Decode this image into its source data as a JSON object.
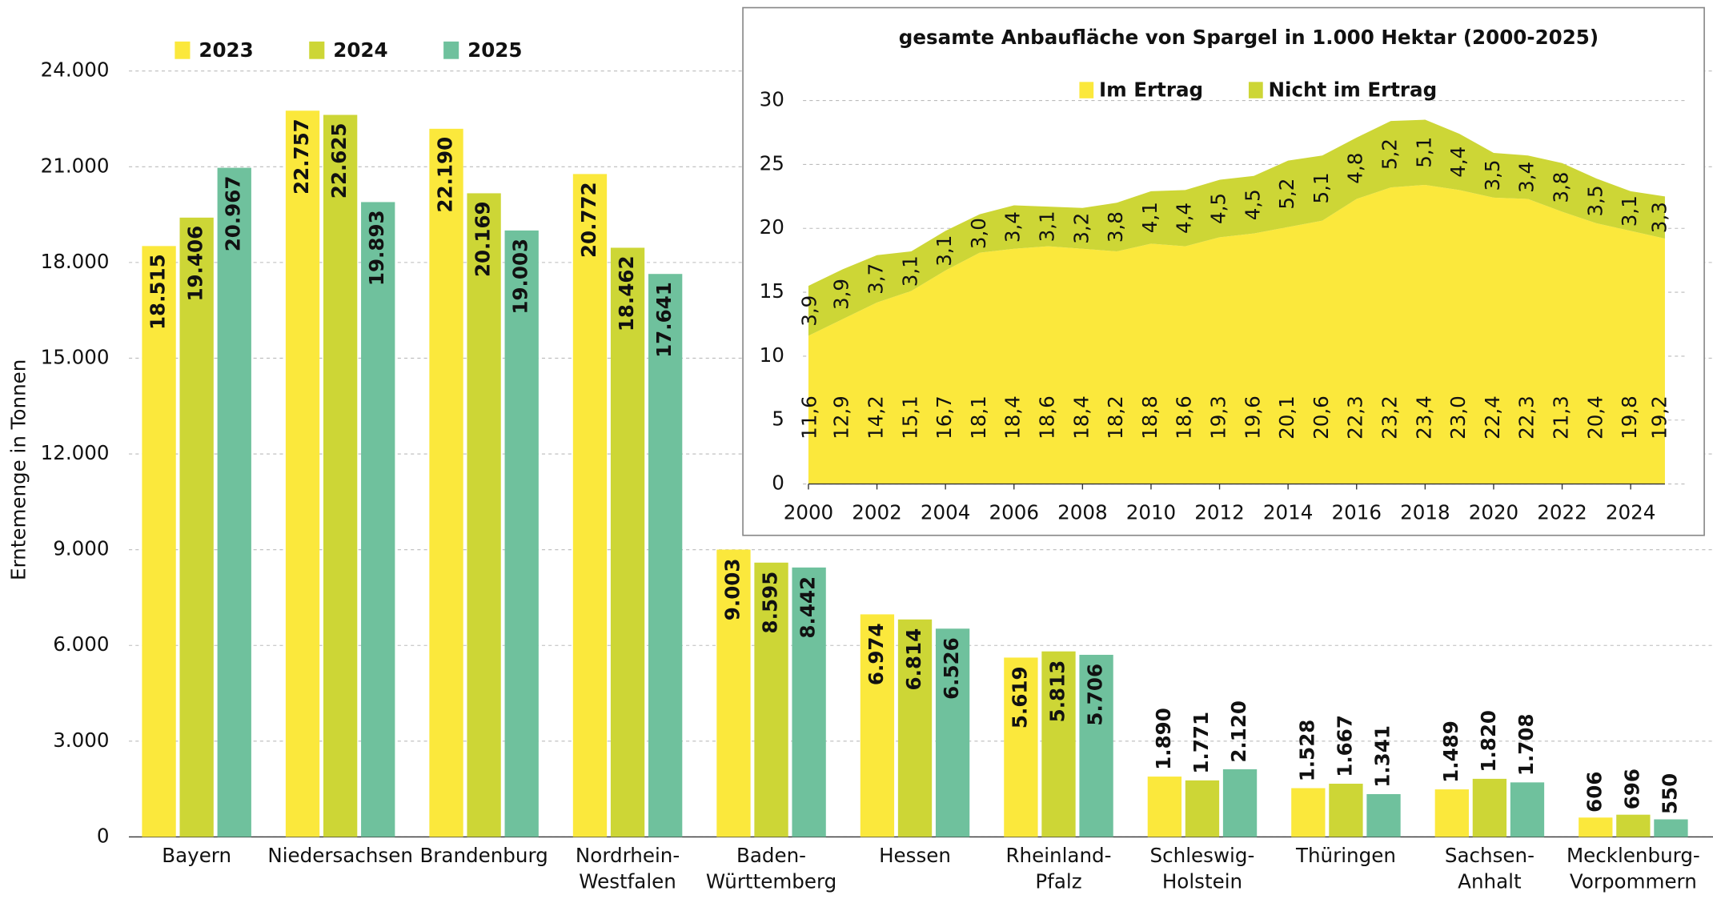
{
  "chart_data": [
    {
      "type": "bar",
      "y_label": "Erntemenge in Tonnen",
      "categories": [
        "Bayern",
        "Niedersachsen",
        "Brandenburg",
        "Nordrhein-\nWestfalen",
        "Baden-\nWürttemberg",
        "Hessen",
        "Rheinland-\nPfalz",
        "Schleswig-\nHolstein",
        "Thüringen",
        "Sachsen-\nAnhalt",
        "Mecklenburg-\nVorpommern"
      ],
      "series": [
        {
          "name": "2023",
          "color": "#fbe83c",
          "values": [
            18515,
            22757,
            22190,
            20772,
            9003,
            6974,
            5619,
            1890,
            1528,
            1489,
            606
          ],
          "value_labels": [
            "18.515",
            "22.757",
            "22.190",
            "20.772",
            "9.003",
            "6.974",
            "5.619",
            "1.890",
            "1.528",
            "1.489",
            "606"
          ]
        },
        {
          "name": "2024",
          "color": "#cdd636",
          "values": [
            19406,
            22625,
            20169,
            18462,
            8595,
            6814,
            5813,
            1771,
            1667,
            1820,
            696
          ],
          "value_labels": [
            "19.406",
            "22.625",
            "20.169",
            "18.462",
            "8.595",
            "6.814",
            "5.813",
            "1.771",
            "1.667",
            "1.820",
            "696"
          ]
        },
        {
          "name": "2025",
          "color": "#6fc19d",
          "values": [
            20967,
            19893,
            19003,
            17641,
            8442,
            6526,
            5706,
            2120,
            1341,
            1708,
            550
          ],
          "value_labels": [
            "20.967",
            "19.893",
            "19.003",
            "17.641",
            "8.442",
            "6.526",
            "5.706",
            "2.120",
            "1.341",
            "1.708",
            "550"
          ]
        }
      ],
      "ylim": [
        0,
        24000
      ],
      "yticks": [
        0,
        {
          "value": 3000,
          "label": "3.000"
        },
        {
          "value": 6000,
          "label": "6.000"
        },
        {
          "value": 9000,
          "label": "9.000"
        },
        {
          "value": 12000,
          "label": "12.000"
        },
        {
          "value": 15000,
          "label": "15.000"
        },
        {
          "value": 18000,
          "label": "18.000"
        },
        {
          "value": 21000,
          "label": "21.000"
        },
        {
          "value": 24000,
          "label": "24.000"
        }
      ],
      "grid": true,
      "legend": "top-left"
    },
    {
      "type": "area",
      "stacked": true,
      "title": "gesamte Anbaufläche von Spargel in 1.000 Hektar (2000-2025)",
      "x": [
        2000,
        2001,
        2002,
        2003,
        2004,
        2005,
        2006,
        2007,
        2008,
        2009,
        2010,
        2011,
        2012,
        2013,
        2014,
        2015,
        2016,
        2017,
        2018,
        2019,
        2020,
        2021,
        2022,
        2023,
        2024,
        2025
      ],
      "series": [
        {
          "name": "Im Ertrag",
          "color": "#fbe83c",
          "values": [
            11.6,
            12.9,
            14.2,
            15.1,
            16.7,
            18.1,
            18.4,
            18.6,
            18.4,
            18.2,
            18.8,
            18.6,
            19.3,
            19.6,
            20.1,
            20.6,
            22.3,
            23.2,
            23.4,
            23.0,
            22.4,
            22.3,
            21.3,
            20.4,
            19.8,
            19.2
          ],
          "value_labels": [
            "11,6",
            "12,9",
            "14,2",
            "15,1",
            "16,7",
            "18,1",
            "18,4",
            "18,6",
            "18,4",
            "18,2",
            "18,8",
            "18,6",
            "19,3",
            "19,6",
            "20,1",
            "20,6",
            "22,3",
            "23,2",
            "23,4",
            "23,0",
            "22,4",
            "22,3",
            "21,3",
            "20,4",
            "19,8",
            "19,2"
          ]
        },
        {
          "name": "Nicht im Ertrag",
          "color": "#cdd636",
          "values": [
            3.9,
            3.9,
            3.7,
            3.1,
            3.1,
            3.0,
            3.4,
            3.1,
            3.2,
            3.8,
            4.1,
            4.4,
            4.5,
            4.5,
            5.2,
            5.1,
            4.8,
            5.2,
            5.1,
            4.4,
            3.5,
            3.4,
            3.8,
            3.5,
            3.1,
            3.3
          ],
          "value_labels": [
            "3,9",
            "3,9",
            "3,7",
            "3,1",
            "3,1",
            "3,0",
            "3,4",
            "3,1",
            "3,2",
            "3,8",
            "4,1",
            "4,4",
            "4,5",
            "4,5",
            "5,2",
            "5,1",
            "4,8",
            "5,2",
            "5,1",
            "4,4",
            "3,5",
            "3,4",
            "3,8",
            "3,5",
            "3,1",
            "3,3"
          ]
        }
      ],
      "xlim": [
        2000,
        2025
      ],
      "xticks": [
        2000,
        2002,
        2004,
        2006,
        2008,
        2010,
        2012,
        2014,
        2016,
        2018,
        2020,
        2022,
        2024
      ],
      "ylim": [
        0,
        30
      ],
      "yticks": [
        0,
        5,
        10,
        15,
        20,
        25,
        30
      ],
      "grid": true,
      "legend": "top"
    }
  ]
}
